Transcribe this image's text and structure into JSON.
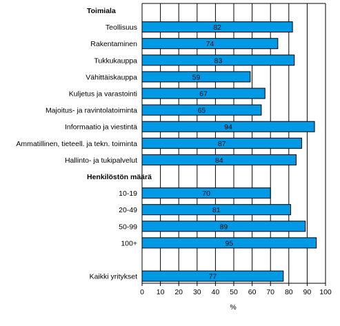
{
  "chart_data": {
    "type": "bar",
    "orientation": "horizontal",
    "xlabel": "%",
    "xlim": [
      0,
      100
    ],
    "xticks": [
      "0",
      "10",
      "20",
      "30",
      "40",
      "50",
      "60",
      "70",
      "80",
      "90",
      "100"
    ],
    "grid": "vertical",
    "bar_color": "#0099e6",
    "rows": [
      {
        "kind": "header",
        "label": "Toimiala"
      },
      {
        "kind": "bar",
        "label": "Teollisuus",
        "value": 82
      },
      {
        "kind": "bar",
        "label": "Rakentaminen",
        "value": 74
      },
      {
        "kind": "bar",
        "label": "Tukkukauppa",
        "value": 83
      },
      {
        "kind": "bar",
        "label": "Vähittäiskauppa",
        "value": 59
      },
      {
        "kind": "bar",
        "label": "Kuljetus ja varastointi",
        "value": 67
      },
      {
        "kind": "bar",
        "label": "Majoitus- ja ravintolatoiminta",
        "value": 65
      },
      {
        "kind": "bar",
        "label": "Informaatio ja viestintä",
        "value": 94
      },
      {
        "kind": "bar",
        "label": "Ammatillinen, tieteell. ja tekn. toiminta",
        "value": 87
      },
      {
        "kind": "bar",
        "label": "Hallinto- ja tukipalvelut",
        "value": 84
      },
      {
        "kind": "header",
        "label": "Henkilöstön määrä"
      },
      {
        "kind": "bar",
        "label": "10-19",
        "value": 70
      },
      {
        "kind": "bar",
        "label": "20-49",
        "value": 81
      },
      {
        "kind": "bar",
        "label": "50-99",
        "value": 89
      },
      {
        "kind": "bar",
        "label": "100+",
        "value": 95
      },
      {
        "kind": "spacer"
      },
      {
        "kind": "bar",
        "label": "Kaikki yritykset",
        "value": 77
      }
    ]
  }
}
